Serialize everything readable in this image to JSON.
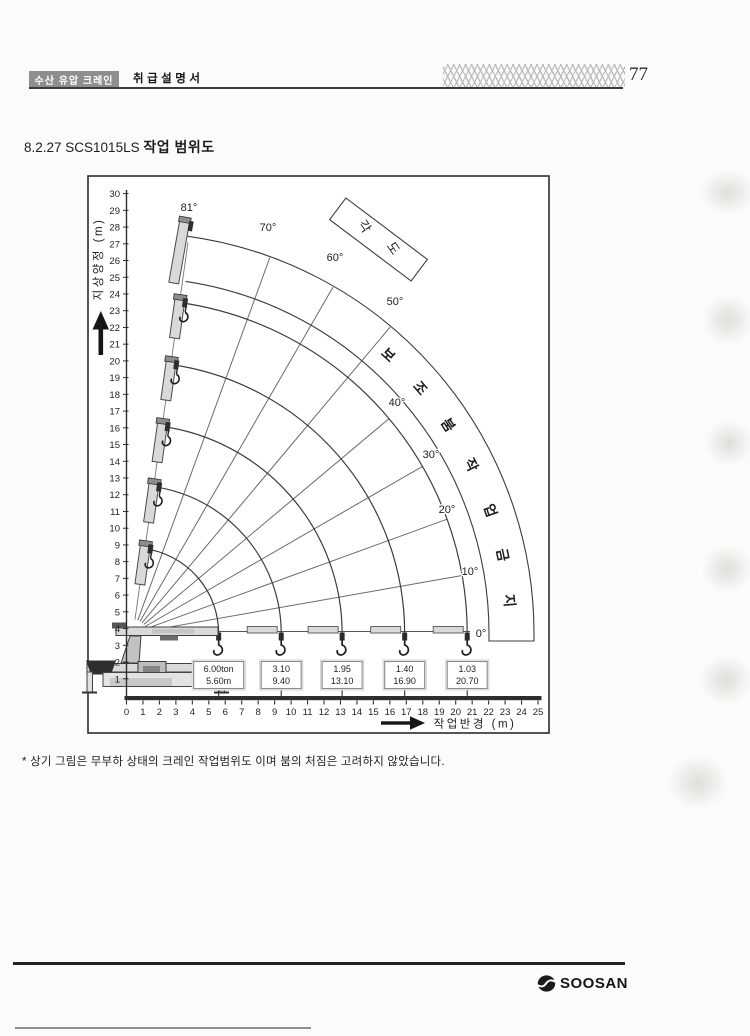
{
  "header": {
    "left_badge": "수산 유압 크레인",
    "manual": "취급설명서",
    "page_number": "77"
  },
  "title": {
    "prefix": "8.2.27 SCS1015LS",
    "bold": "작업 범위도"
  },
  "chart_data": {
    "type": "line",
    "title": "SCS1015LS 작업 범위도",
    "xlabel": "작업반경 (m)",
    "ylabel": "지상양정 (m)",
    "xlim": [
      0,
      25
    ],
    "ylim": [
      0,
      30
    ],
    "grid": false,
    "angles_deg": [
      0,
      10,
      20,
      30,
      40,
      50,
      60,
      70,
      81
    ],
    "angle_labels": [
      "0°",
      "10°",
      "20°",
      "30°",
      "40°",
      "50°",
      "60°",
      "70°",
      "81°"
    ],
    "extensions": [
      {
        "load": "6.00ton",
        "radius_label": "5.60m",
        "radius_m": 5.6
      },
      {
        "load": "3.10",
        "radius_label": "9.40",
        "radius_m": 9.4
      },
      {
        "load": "1.95",
        "radius_label": "13.10",
        "radius_m": 13.1
      },
      {
        "load": "1.40",
        "radius_label": "16.90",
        "radius_m": 16.9
      },
      {
        "load": "1.03",
        "radius_label": "20.70",
        "radius_m": 20.7
      }
    ],
    "aux_band_label": "보조붐작업금지",
    "angle_box_label": "각도",
    "ink_color": "#3c3c3c",
    "boom_fill": "#d9d9d9"
  },
  "footnote": {
    "text": "* 상기 그림은 무부하 상태의 크레인 작업범위도 이며 붐의 처짐은 고려하지 않았습니다."
  },
  "footer": {
    "brand": "SOOSAN"
  }
}
